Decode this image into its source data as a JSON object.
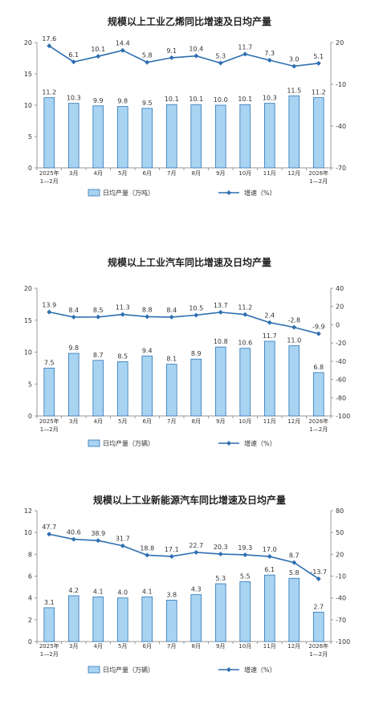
{
  "chart_data": [
    {
      "type": "bar",
      "title": "规模以上工业乙烯同比增速及日均产量",
      "categories": [
        "2025年\n1—2月",
        "3月",
        "4月",
        "5月",
        "6月",
        "7月",
        "8月",
        "9月",
        "10月",
        "11月",
        "12月",
        "2026年\n1—2月"
      ],
      "series": [
        {
          "name": "日均产量（万吨）",
          "kind": "bar",
          "axis": "left",
          "values": [
            11.2,
            10.3,
            9.9,
            9.8,
            9.5,
            10.1,
            10.1,
            10.0,
            10.1,
            10.3,
            11.5,
            11.2
          ]
        },
        {
          "name": "增速（%）",
          "kind": "line",
          "axis": "right",
          "values": [
            17.6,
            6.1,
            10.1,
            14.4,
            5.8,
            9.1,
            10.4,
            5.3,
            11.7,
            7.3,
            3.0,
            5.1
          ]
        }
      ],
      "y_left": {
        "min": 0,
        "max": 20,
        "ticks": [
          0,
          5,
          10,
          15,
          20
        ]
      },
      "y_right": {
        "min": -70,
        "max": 20,
        "ticks": [
          -70,
          -40,
          -10,
          20
        ]
      },
      "legend_position": "bottom",
      "grid": false
    },
    {
      "type": "bar",
      "title": "规模以上工业汽车同比增速及日均产量",
      "categories": [
        "2025年\n1—2月",
        "3月",
        "4月",
        "5月",
        "6月",
        "7月",
        "8月",
        "9月",
        "10月",
        "11月",
        "12月",
        "2026年\n1—2月"
      ],
      "series": [
        {
          "name": "日均产量（万辆）",
          "kind": "bar",
          "axis": "left",
          "values": [
            7.5,
            9.8,
            8.7,
            8.5,
            9.4,
            8.1,
            8.9,
            10.8,
            10.6,
            11.7,
            11.0,
            6.8
          ]
        },
        {
          "name": "增速（%）",
          "kind": "line",
          "axis": "right",
          "values": [
            13.9,
            8.4,
            8.5,
            11.3,
            8.8,
            8.4,
            10.5,
            13.7,
            11.2,
            2.4,
            -2.8,
            -9.9
          ]
        }
      ],
      "y_left": {
        "min": 0,
        "max": 20,
        "ticks": [
          0,
          5,
          10,
          15,
          20
        ]
      },
      "y_right": {
        "min": -100,
        "max": 40,
        "ticks": [
          -100,
          -80,
          -60,
          -40,
          -20,
          0,
          20,
          40
        ]
      },
      "legend_position": "bottom",
      "grid": false
    },
    {
      "type": "bar",
      "title": "规模以上工业新能源汽车同比增速及日均产量",
      "categories": [
        "2025年\n1—2月",
        "3月",
        "4月",
        "5月",
        "6月",
        "7月",
        "8月",
        "9月",
        "10月",
        "11月",
        "12月",
        "2026年\n1—2月"
      ],
      "series": [
        {
          "name": "日均产量（万辆）",
          "kind": "bar",
          "axis": "left",
          "values": [
            3.1,
            4.2,
            4.1,
            4.0,
            4.1,
            3.8,
            4.3,
            5.3,
            5.5,
            6.1,
            5.8,
            2.7
          ]
        },
        {
          "name": "增速（%）",
          "kind": "line",
          "axis": "right",
          "values": [
            47.7,
            40.6,
            38.9,
            31.7,
            18.8,
            17.1,
            22.7,
            20.3,
            19.3,
            17.0,
            8.7,
            -13.7
          ]
        }
      ],
      "y_left": {
        "min": 0,
        "max": 12,
        "ticks": [
          0,
          2,
          4,
          6,
          8,
          10,
          12
        ]
      },
      "y_right": {
        "min": -100,
        "max": 80,
        "ticks": [
          -100,
          -70,
          -40,
          -10,
          20,
          50,
          80
        ]
      },
      "legend_position": "bottom",
      "grid": false
    }
  ],
  "colors": {
    "bar_fill": "#a8d4f2",
    "bar_stroke": "#2e75b6",
    "line": "#2e6fb0",
    "axis": "#999999",
    "text": "#333333"
  }
}
